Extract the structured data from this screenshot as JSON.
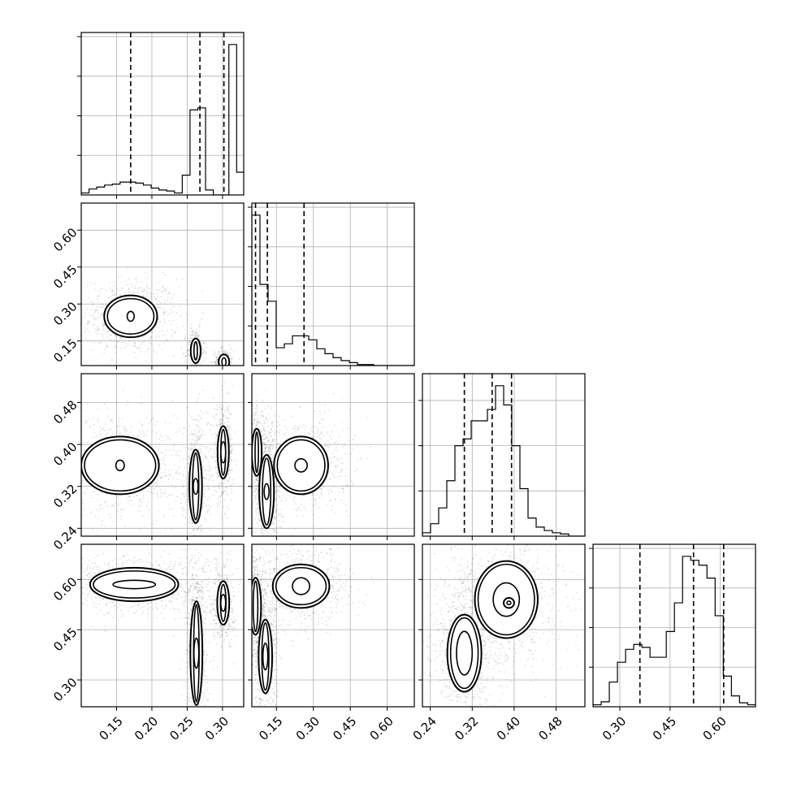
{
  "chart_data": {
    "type": "corner",
    "grid": true,
    "params": [
      {
        "range": [
          0.1,
          0.33
        ],
        "ticks": [
          0.15,
          0.2,
          0.25,
          0.3
        ],
        "tick_labels": [
          "0.15",
          "0.20",
          "0.25",
          "0.30"
        ],
        "quantiles": [
          0.17,
          0.268,
          0.302
        ],
        "hist_edges_start": 0.1,
        "hist_bin_width": 0.011,
        "hist_counts": [
          2,
          6,
          8,
          10,
          11,
          13,
          13,
          12,
          10,
          7,
          5,
          4,
          2,
          20,
          86,
          88,
          5,
          0,
          0,
          152,
          23,
          0,
          0
        ]
      },
      {
        "range": [
          0.05,
          0.71
        ],
        "ticks": [
          0.15,
          0.3,
          0.45,
          0.6
        ],
        "tick_labels": [
          "0.15",
          "0.30",
          "0.45",
          "0.60"
        ],
        "quantiles": [
          0.065,
          0.113,
          0.262
        ],
        "hist_edges_start": 0.05,
        "hist_bin_width": 0.033,
        "hist_counts": [
          152,
          82,
          65,
          18,
          22,
          30,
          30,
          26,
          17,
          12,
          8,
          5,
          3,
          1,
          1,
          0,
          0,
          0,
          0,
          0
        ]
      },
      {
        "range": [
          0.225,
          0.535
        ],
        "ticks": [
          0.24,
          0.32,
          0.4,
          0.48
        ],
        "tick_labels": [
          "0.24",
          "0.32",
          "0.40",
          "0.48"
        ],
        "quantiles": [
          0.305,
          0.358,
          0.395
        ],
        "hist_edges_start": 0.225,
        "hist_bin_width": 0.0155,
        "hist_counts": [
          3,
          11,
          25,
          49,
          80,
          86,
          102,
          102,
          112,
          133,
          116,
          80,
          42,
          16,
          8,
          5,
          3,
          2,
          0,
          0
        ]
      },
      {
        "range": [
          0.22,
          0.705
        ],
        "ticks": [
          0.3,
          0.45,
          0.6
        ],
        "tick_labels": [
          "0.30",
          "0.45",
          "0.60"
        ],
        "quantiles": [
          0.36,
          0.52,
          0.61
        ],
        "hist_edges_start": 0.22,
        "hist_bin_width": 0.0243,
        "hist_counts": [
          2,
          5,
          25,
          45,
          58,
          63,
          60,
          50,
          50,
          76,
          105,
          152,
          148,
          143,
          130,
          92,
          31,
          11,
          4,
          2
        ]
      }
    ],
    "contours_2d": {
      "1_0": [
        {
          "center": [
            0.17,
            0.25
          ],
          "size": [
            0.075,
            0.17
          ],
          "inner": [
            0.01,
            0.04
          ]
        },
        {
          "center": [
            0.262,
            0.11
          ],
          "size": [
            0.014,
            0.1
          ]
        },
        {
          "center": [
            0.302,
            0.065
          ],
          "size": [
            0.015,
            0.06
          ]
        }
      ],
      "2_0": [
        {
          "center": [
            0.155,
            0.36
          ],
          "size": [
            0.11,
            0.11
          ],
          "inner": [
            0.012,
            0.02
          ]
        },
        {
          "center": [
            0.262,
            0.32
          ],
          "size": [
            0.018,
            0.14
          ],
          "inner": [
            0.004,
            0.03
          ]
        },
        {
          "center": [
            0.301,
            0.385
          ],
          "size": [
            0.016,
            0.1
          ],
          "inner": [
            0.006,
            0.04
          ]
        }
      ],
      "2_1": [
        {
          "center": [
            0.07,
            0.385
          ],
          "size": [
            0.04,
            0.09
          ]
        },
        {
          "center": [
            0.11,
            0.31
          ],
          "size": [
            0.06,
            0.14
          ],
          "inner": [
            0.01,
            0.03
          ]
        },
        {
          "center": [
            0.25,
            0.36
          ],
          "size": [
            0.22,
            0.11
          ],
          "inner": [
            0.05,
            0.025
          ]
        }
      ],
      "3_0": [
        {
          "center": [
            0.175,
            0.585
          ],
          "size": [
            0.125,
            0.1
          ],
          "inner": [
            0.06,
            0.025
          ]
        },
        {
          "center": [
            0.263,
            0.38
          ],
          "size": [
            0.017,
            0.31
          ],
          "inner": [
            0.006,
            0.09
          ]
        },
        {
          "center": [
            0.301,
            0.53
          ],
          "size": [
            0.017,
            0.13
          ],
          "inner": [
            0.006,
            0.05
          ]
        }
      ],
      "3_1": [
        {
          "center": [
            0.065,
            0.52
          ],
          "size": [
            0.045,
            0.17
          ]
        },
        {
          "center": [
            0.105,
            0.37
          ],
          "size": [
            0.055,
            0.22
          ],
          "inner": [
            0.012,
            0.08
          ]
        },
        {
          "center": [
            0.25,
            0.58
          ],
          "size": [
            0.23,
            0.13
          ],
          "inner": [
            0.07,
            0.05
          ]
        }
      ],
      "3_2": [
        {
          "center": [
            0.385,
            0.54
          ],
          "size": [
            0.12,
            0.23
          ],
          "inner": [
            0.05,
            0.1
          ]
        },
        {
          "center": [
            0.305,
            0.38
          ],
          "size": [
            0.065,
            0.23
          ],
          "inner": [
            0.03,
            0.13
          ]
        },
        {
          "center": [
            0.39,
            0.53
          ],
          "size": [
            0.02,
            0.03
          ]
        }
      ]
    }
  }
}
